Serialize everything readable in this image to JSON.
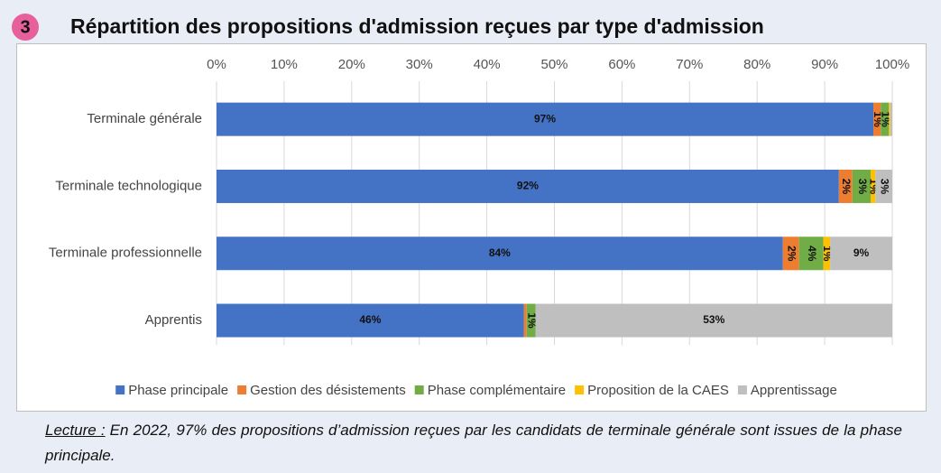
{
  "badge": "3",
  "chart_data": {
    "type": "stacked_bar_horizontal",
    "title": "Répartition des propositions d'admission reçues par type d'admission",
    "categories": [
      "Terminale générale",
      "Terminale technologique",
      "Terminale professionnelle",
      "Apprentis"
    ],
    "series": [
      {
        "name": "Phase principale",
        "color": "#4472c4",
        "values": [
          97.2,
          92.1,
          83.8,
          45.5
        ],
        "value_labels": [
          "97%",
          "92%",
          "84%",
          "46%"
        ]
      },
      {
        "name": "Gestion des désistements",
        "color": "#ed7d31",
        "values": [
          1.1,
          2.0,
          2.4,
          0.4
        ],
        "value_labels": [
          "1%",
          "2%",
          "2%",
          null
        ]
      },
      {
        "name": "Phase complémentaire",
        "color": "#70ad47",
        "values": [
          1.2,
          2.7,
          3.6,
          1.3
        ],
        "value_labels": [
          "1%",
          "3%",
          "4%",
          "1%"
        ]
      },
      {
        "name": "Proposition de la CAES",
        "color": "#ffc000",
        "values": [
          0.2,
          0.7,
          1.0,
          0.0
        ],
        "value_labels": [
          null,
          "1%",
          "1%",
          null
        ]
      },
      {
        "name": "Apprentissage",
        "color": "#bfbfbf",
        "values": [
          0.3,
          2.5,
          9.2,
          52.8
        ],
        "value_labels": [
          null,
          "3%",
          "9%",
          "53%"
        ]
      }
    ],
    "xlim": [
      0,
      100
    ],
    "xticks": [
      {
        "value": 0,
        "label": "0%"
      },
      {
        "value": 10,
        "label": "10%"
      },
      {
        "value": 20,
        "label": "20%"
      },
      {
        "value": 30,
        "label": "30%"
      },
      {
        "value": 40,
        "label": "40%"
      },
      {
        "value": 50,
        "label": "50%"
      },
      {
        "value": 60,
        "label": "60%"
      },
      {
        "value": 70,
        "label": "70%"
      },
      {
        "value": 80,
        "label": "80%"
      },
      {
        "value": 90,
        "label": "90%"
      },
      {
        "value": 100,
        "label": "100%"
      }
    ],
    "grid": true,
    "legend": "bottom"
  },
  "note": {
    "label": "Lecture :",
    "text": "En 2022, 97% des propositions d’admission reçues par les candidats de terminale générale sont issues de la phase principale."
  }
}
